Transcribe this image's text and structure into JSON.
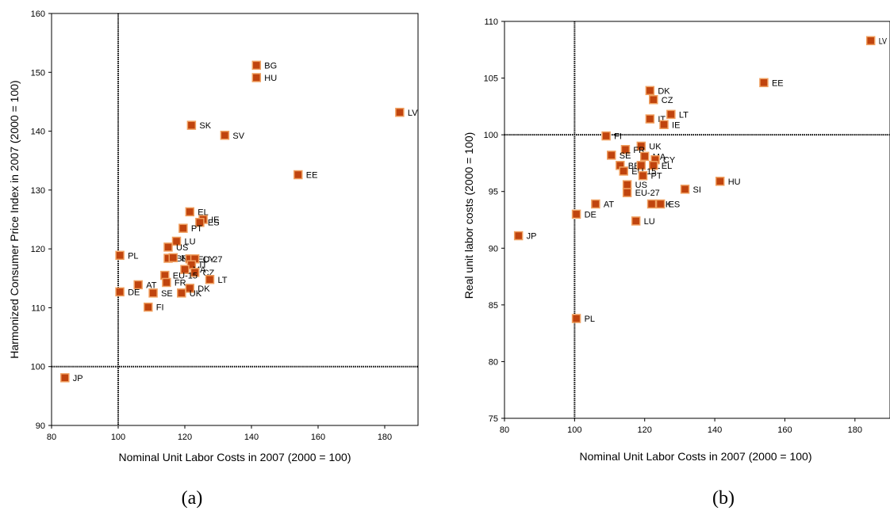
{
  "colors": {
    "marker_fill": "#C0440E",
    "marker_stroke": "#F0A060",
    "reference_line": "#000000",
    "axis": "#000000"
  },
  "chart_data": [
    {
      "type": "scatter",
      "caption": "(a)",
      "xlabel": "Nominal Unit Labor Costs in 2007 (2000 = 100)",
      "ylabel": "Harmonized Consumer Price Index in 2007 (2000 = 100)",
      "xlim": [
        80,
        190
      ],
      "ylim": [
        90,
        160
      ],
      "xticks": [
        80,
        100,
        120,
        140,
        160,
        180
      ],
      "yticks": [
        90,
        100,
        110,
        120,
        130,
        140,
        150,
        160
      ],
      "reference_lines": {
        "x": 100,
        "y": 100
      },
      "grid": false,
      "points": [
        {
          "label": "BG",
          "x": 141.5,
          "y": 151.2
        },
        {
          "label": "HU",
          "x": 141.5,
          "y": 149.1
        },
        {
          "label": "LV",
          "x": 184.5,
          "y": 143.2
        },
        {
          "label": "SK",
          "x": 122.0,
          "y": 141.0
        },
        {
          "label": "SV",
          "x": 132.0,
          "y": 139.3
        },
        {
          "label": "EE",
          "x": 154.0,
          "y": 132.6
        },
        {
          "label": "EL",
          "x": 121.5,
          "y": 126.3
        },
        {
          "label": "IE",
          "x": 125.5,
          "y": 125.0
        },
        {
          "label": "ES",
          "x": 124.5,
          "y": 124.5
        },
        {
          "label": "PT",
          "x": 119.5,
          "y": 123.5
        },
        {
          "label": "LU",
          "x": 117.5,
          "y": 121.3
        },
        {
          "label": "US",
          "x": 115.0,
          "y": 120.3
        },
        {
          "label": "PL",
          "x": 100.5,
          "y": 118.9
        },
        {
          "label": "BE",
          "x": 115.0,
          "y": 118.4
        },
        {
          "label": "NL",
          "x": 116.5,
          "y": 118.5
        },
        {
          "label": "EU-27",
          "x": 121.5,
          "y": 118.3
        },
        {
          "label": "CY",
          "x": 123.0,
          "y": 118.3
        },
        {
          "label": "IT",
          "x": 122.0,
          "y": 117.3
        },
        {
          "label": "MA",
          "x": 120.0,
          "y": 116.5
        },
        {
          "label": "CZ",
          "x": 123.0,
          "y": 116.0
        },
        {
          "label": "EU-15",
          "x": 114.0,
          "y": 115.5
        },
        {
          "label": "FR",
          "x": 114.5,
          "y": 114.3
        },
        {
          "label": "LT",
          "x": 127.5,
          "y": 114.8
        },
        {
          "label": "AT",
          "x": 106.0,
          "y": 113.9
        },
        {
          "label": "DK",
          "x": 121.5,
          "y": 113.3
        },
        {
          "label": "DE",
          "x": 100.5,
          "y": 112.7
        },
        {
          "label": "SE",
          "x": 110.5,
          "y": 112.5
        },
        {
          "label": "UK",
          "x": 119.0,
          "y": 112.5
        },
        {
          "label": "FI",
          "x": 109.0,
          "y": 110.1
        },
        {
          "label": "JP",
          "x": 84.0,
          "y": 98.1
        }
      ]
    },
    {
      "type": "scatter",
      "caption": "(b)",
      "xlabel": "Nominal Unit Labor Costs in 2007 (2000 = 100)",
      "ylabel": "Real unit labor costs (2000 = 100)",
      "xlim": [
        80,
        190
      ],
      "ylim": [
        75,
        110
      ],
      "xticks": [
        80,
        100,
        120,
        140,
        160,
        180
      ],
      "yticks": [
        75,
        80,
        85,
        90,
        95,
        100,
        105,
        110
      ],
      "reference_lines": {
        "x": 100,
        "y": 100
      },
      "grid": false,
      "points": [
        {
          "label": "LV",
          "x": 184.5,
          "y": 108.3
        },
        {
          "label": "EE",
          "x": 154.0,
          "y": 104.6
        },
        {
          "label": "DK",
          "x": 121.5,
          "y": 103.9
        },
        {
          "label": "CZ",
          "x": 122.5,
          "y": 103.1
        },
        {
          "label": "LT",
          "x": 127.5,
          "y": 101.8
        },
        {
          "label": "IT",
          "x": 121.5,
          "y": 101.4
        },
        {
          "label": "IE",
          "x": 125.5,
          "y": 100.9
        },
        {
          "label": "FI",
          "x": 109.0,
          "y": 99.9
        },
        {
          "label": "UK",
          "x": 119.0,
          "y": 99.0
        },
        {
          "label": "FR",
          "x": 114.5,
          "y": 98.7
        },
        {
          "label": "SE",
          "x": 110.5,
          "y": 98.2
        },
        {
          "label": "MA",
          "x": 120.0,
          "y": 98.1
        },
        {
          "label": "CY",
          "x": 123.0,
          "y": 97.8
        },
        {
          "label": "BE",
          "x": 113.0,
          "y": 97.3
        },
        {
          "label": "NL",
          "x": 119.0,
          "y": 97.3
        },
        {
          "label": "EL",
          "x": 122.5,
          "y": 97.3
        },
        {
          "label": "EU-15",
          "x": 114.0,
          "y": 96.8
        },
        {
          "label": "PT",
          "x": 119.5,
          "y": 96.4
        },
        {
          "label": "US",
          "x": 115.0,
          "y": 95.6
        },
        {
          "label": "SI",
          "x": 131.5,
          "y": 95.2
        },
        {
          "label": "HU",
          "x": 141.5,
          "y": 95.9
        },
        {
          "label": "EU-27",
          "x": 115.0,
          "y": 94.9
        },
        {
          "label": "AT",
          "x": 106.0,
          "y": 93.9
        },
        {
          "label": "SK",
          "x": 122.0,
          "y": 93.9
        },
        {
          "label": "ES",
          "x": 124.5,
          "y": 93.9
        },
        {
          "label": "DE",
          "x": 100.5,
          "y": 93.0
        },
        {
          "label": "LU",
          "x": 117.5,
          "y": 92.4
        },
        {
          "label": "JP",
          "x": 84.0,
          "y": 91.1
        },
        {
          "label": "PL",
          "x": 100.5,
          "y": 83.8
        }
      ]
    }
  ]
}
